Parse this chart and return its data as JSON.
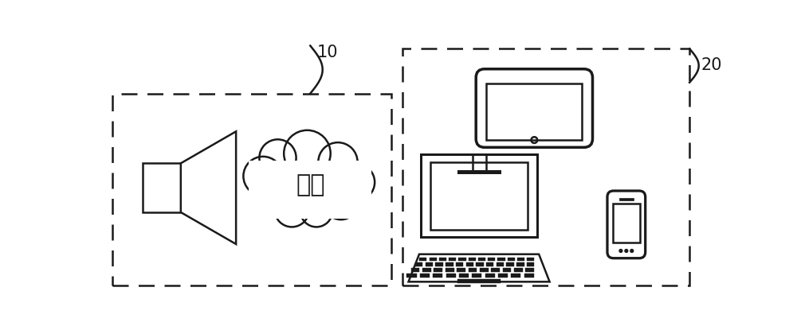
{
  "bg_color": "#ffffff",
  "line_color": "#1a1a1a",
  "label_10": "10",
  "label_20": "20",
  "network_text": "网络",
  "fig_width": 10.0,
  "fig_height": 4.15,
  "dpi": 100
}
